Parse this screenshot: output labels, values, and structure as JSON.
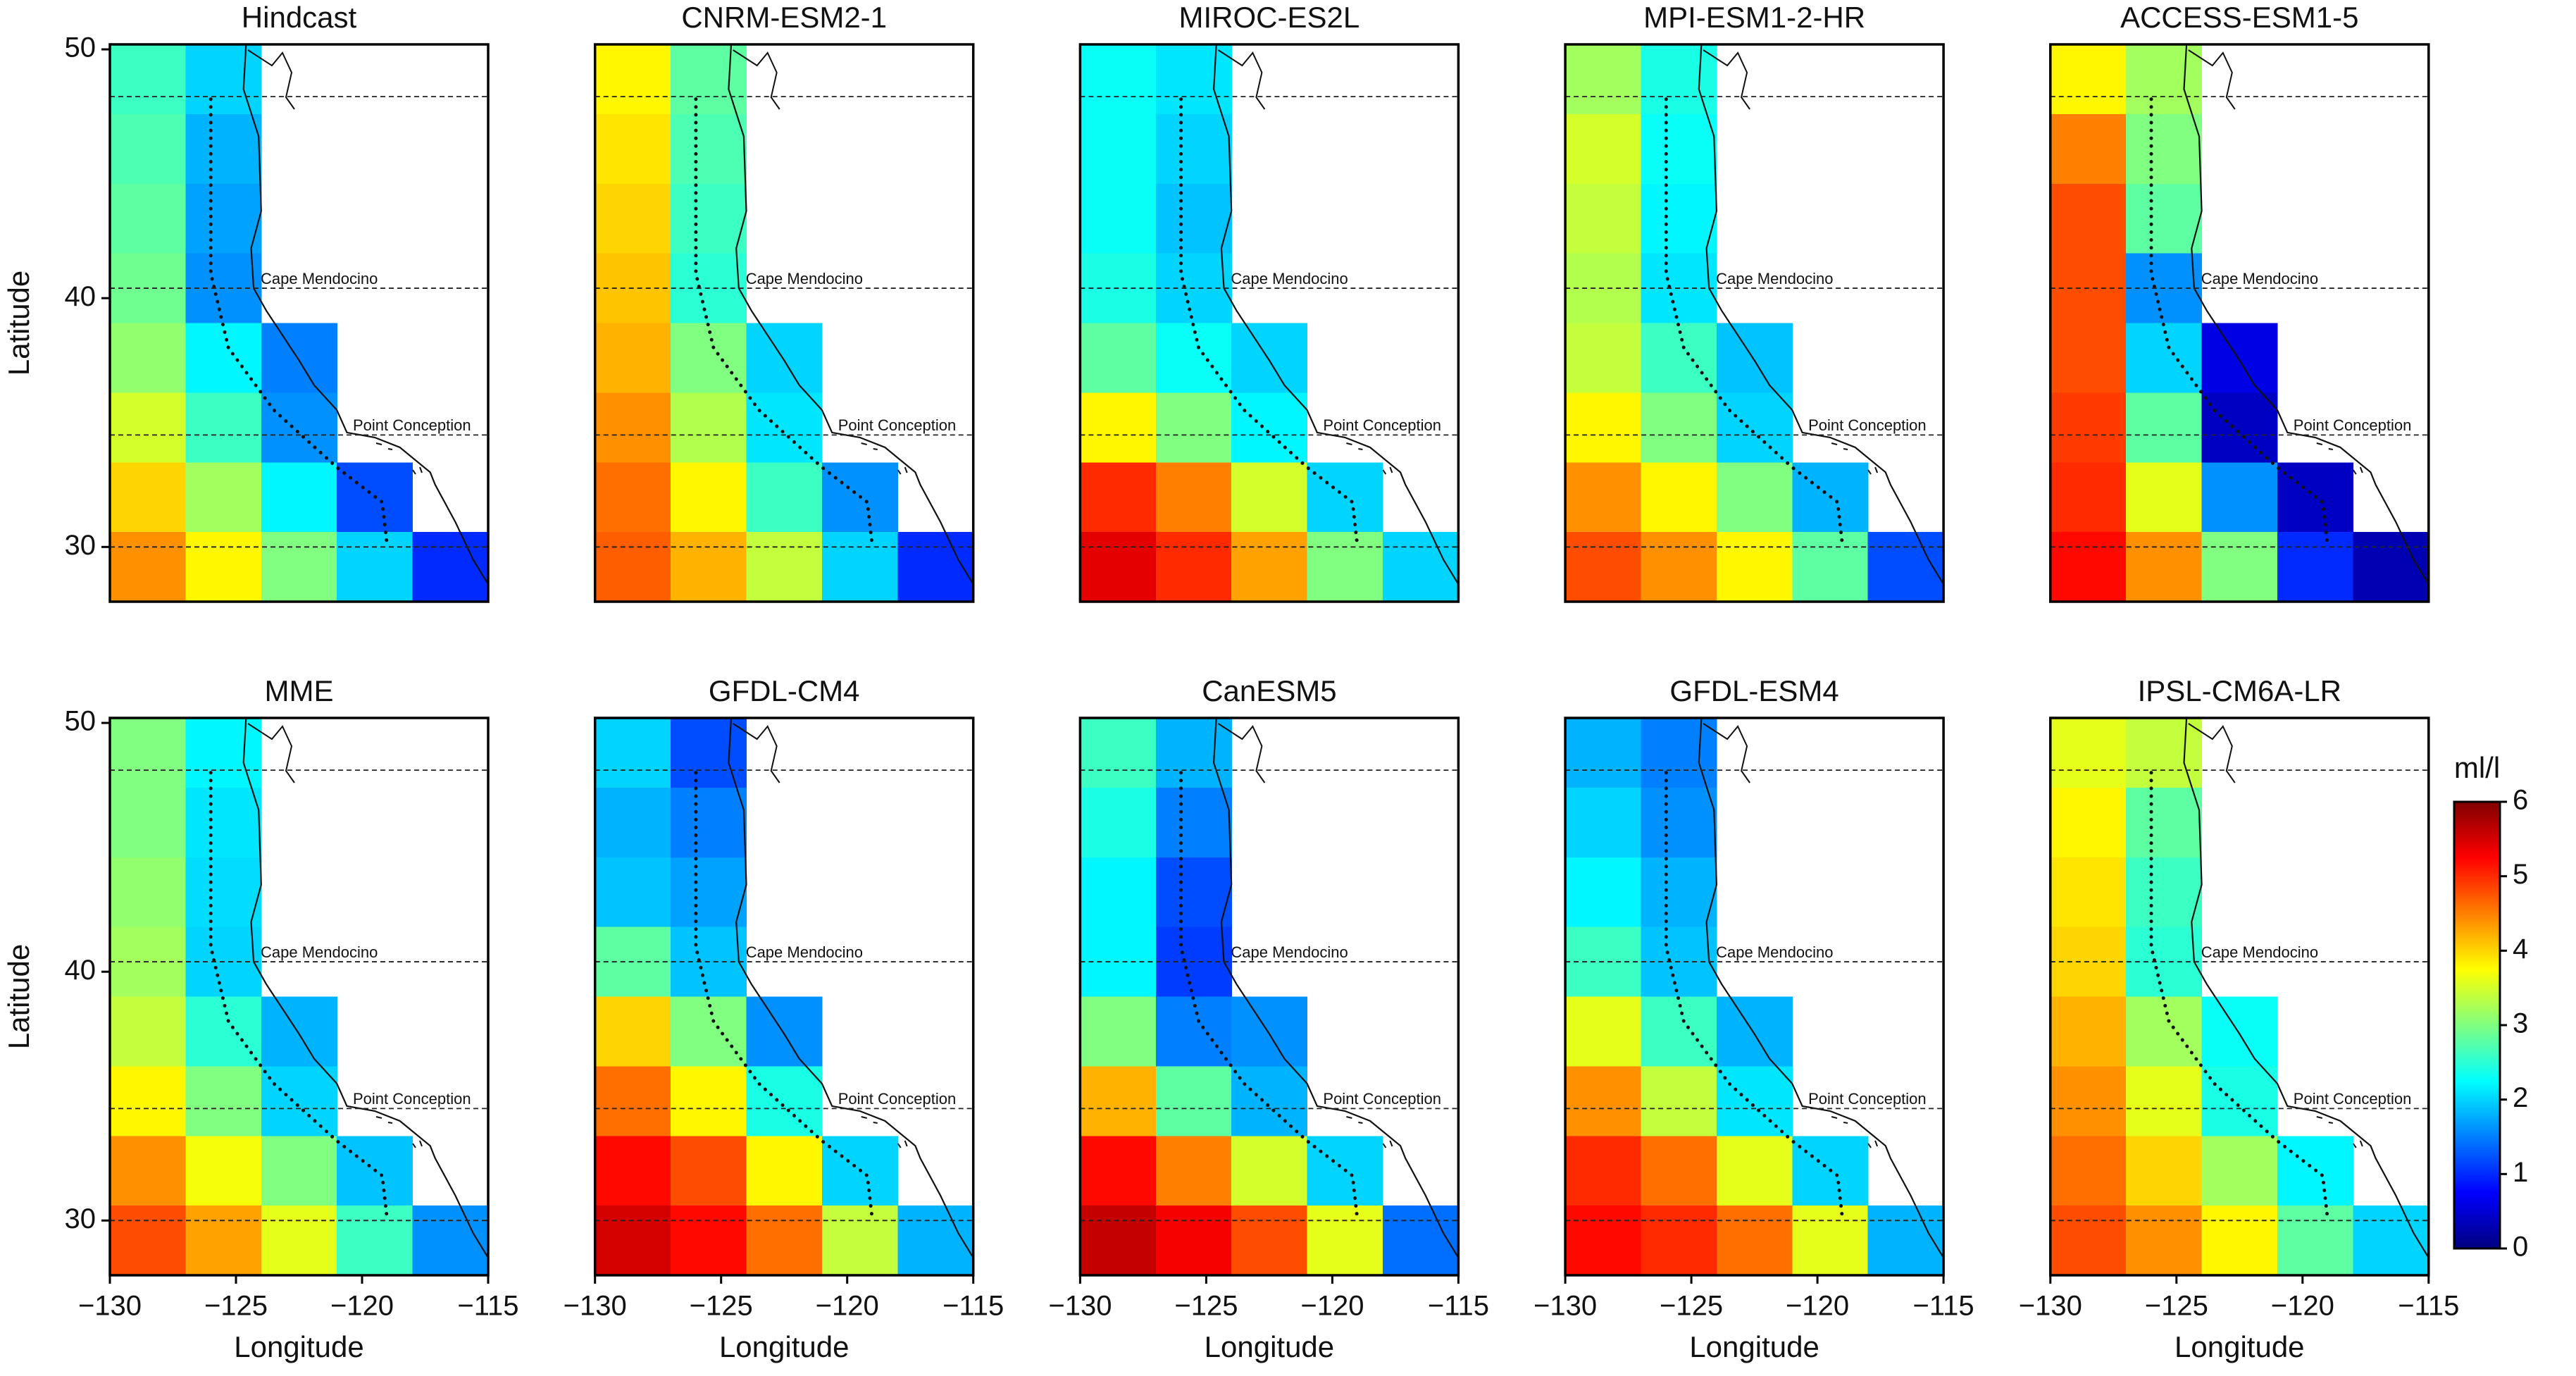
{
  "chart_data": [
    {
      "type": "heatmap",
      "title": "Hindcast",
      "colormap": "jet",
      "clim": [
        0,
        6
      ],
      "xlim": [
        -130,
        -115
      ],
      "ylim": [
        27.8,
        50.2
      ],
      "x": [
        -128.5,
        -125.5,
        -122.5,
        -119.5,
        -116.5
      ],
      "y": [
        48.8,
        46,
        43.2,
        40.4,
        37.6,
        34.8,
        32,
        29.2
      ],
      "values": [
        [
          2.6,
          2.0,
          null,
          null,
          null
        ],
        [
          2.7,
          1.8,
          null,
          null,
          null
        ],
        [
          2.8,
          1.7,
          null,
          null,
          null
        ],
        [
          2.9,
          1.6,
          null,
          null,
          null
        ],
        [
          3.1,
          2.2,
          1.5,
          null,
          null
        ],
        [
          3.5,
          2.6,
          1.6,
          null,
          null
        ],
        [
          4.0,
          3.2,
          2.2,
          1.2,
          null
        ],
        [
          4.4,
          3.8,
          3.0,
          2.0,
          1.0
        ]
      ],
      "reference_lines": [
        48.1,
        40.4,
        34.5,
        30
      ],
      "annotations": [
        {
          "text": "Cape Mendocino",
          "y": 40.4
        },
        {
          "text": "Point Conception",
          "y": 34.5
        }
      ],
      "yticks": [
        30,
        40,
        50
      ],
      "ylabel": "Latitude"
    },
    {
      "type": "heatmap",
      "title": "CNRM-ESM2-1",
      "colormap": "jet",
      "clim": [
        0,
        6
      ],
      "xlim": [
        -130,
        -115
      ],
      "ylim": [
        27.8,
        50.2
      ],
      "x": [
        -128.5,
        -125.5,
        -122.5,
        -119.5,
        -116.5
      ],
      "y": [
        48.8,
        46,
        43.2,
        40.4,
        37.6,
        34.8,
        32,
        29.2
      ],
      "values": [
        [
          3.8,
          2.8,
          null,
          null,
          null
        ],
        [
          3.9,
          2.7,
          null,
          null,
          null
        ],
        [
          4.0,
          2.6,
          null,
          null,
          null
        ],
        [
          4.1,
          2.5,
          null,
          null,
          null
        ],
        [
          4.2,
          3.0,
          2.0,
          null,
          null
        ],
        [
          4.4,
          3.3,
          2.1,
          null,
          null
        ],
        [
          4.6,
          3.8,
          2.6,
          1.6,
          null
        ],
        [
          4.7,
          4.2,
          3.4,
          2.0,
          1.0
        ]
      ],
      "reference_lines": [
        48.1,
        40.4,
        34.5,
        30
      ],
      "annotations": [
        {
          "text": "Cape Mendocino",
          "y": 40.4
        },
        {
          "text": "Point Conception",
          "y": 34.5
        }
      ]
    },
    {
      "type": "heatmap",
      "title": "MIROC-ES2L",
      "colormap": "jet",
      "clim": [
        0,
        6
      ],
      "xlim": [
        -130,
        -115
      ],
      "ylim": [
        27.8,
        50.2
      ],
      "x": [
        -128.5,
        -125.5,
        -122.5,
        -119.5,
        -116.5
      ],
      "y": [
        48.8,
        46,
        43.2,
        40.4,
        37.6,
        34.8,
        32,
        29.2
      ],
      "values": [
        [
          2.3,
          2.1,
          null,
          null,
          null
        ],
        [
          2.3,
          2.0,
          null,
          null,
          null
        ],
        [
          2.3,
          1.9,
          null,
          null,
          null
        ],
        [
          2.4,
          2.0,
          null,
          null,
          null
        ],
        [
          2.8,
          2.3,
          2.0,
          null,
          null
        ],
        [
          3.8,
          3.0,
          2.2,
          null,
          null
        ],
        [
          5.0,
          4.5,
          3.5,
          2.0,
          null
        ],
        [
          5.4,
          5.0,
          4.3,
          3.0,
          2.0
        ]
      ],
      "reference_lines": [
        48.1,
        40.4,
        34.5,
        30
      ],
      "annotations": [
        {
          "text": "Cape Mendocino",
          "y": 40.4
        },
        {
          "text": "Point Conception",
          "y": 34.5
        }
      ]
    },
    {
      "type": "heatmap",
      "title": "MPI-ESM1-2-HR",
      "colormap": "jet",
      "clim": [
        0,
        6
      ],
      "xlim": [
        -130,
        -115
      ],
      "ylim": [
        27.8,
        50.2
      ],
      "x": [
        -128.5,
        -125.5,
        -122.5,
        -119.5,
        -116.5
      ],
      "y": [
        48.8,
        46,
        43.2,
        40.4,
        37.6,
        34.8,
        32,
        29.2
      ],
      "values": [
        [
          3.2,
          2.4,
          null,
          null,
          null
        ],
        [
          3.5,
          2.3,
          null,
          null,
          null
        ],
        [
          3.4,
          2.2,
          null,
          null,
          null
        ],
        [
          3.3,
          2.1,
          null,
          null,
          null
        ],
        [
          3.4,
          2.6,
          1.9,
          null,
          null
        ],
        [
          3.8,
          3.0,
          2.0,
          null,
          null
        ],
        [
          4.4,
          3.8,
          3.0,
          1.8,
          null
        ],
        [
          4.8,
          4.4,
          3.8,
          2.8,
          1.2
        ]
      ],
      "reference_lines": [
        48.1,
        40.4,
        34.5,
        30
      ],
      "annotations": [
        {
          "text": "Cape Mendocino",
          "y": 40.4
        },
        {
          "text": "Point Conception",
          "y": 34.5
        }
      ]
    },
    {
      "type": "heatmap",
      "title": "ACCESS-ESM1-5",
      "colormap": "jet",
      "clim": [
        0,
        6
      ],
      "xlim": [
        -130,
        -115
      ],
      "ylim": [
        27.8,
        50.2
      ],
      "x": [
        -128.5,
        -125.5,
        -122.5,
        -119.5,
        -116.5
      ],
      "y": [
        48.8,
        46,
        43.2,
        40.4,
        37.6,
        34.8,
        32,
        29.2
      ],
      "values": [
        [
          3.8,
          3.2,
          null,
          null,
          null
        ],
        [
          4.5,
          3.0,
          null,
          null,
          null
        ],
        [
          4.8,
          2.8,
          null,
          null,
          null
        ],
        [
          4.8,
          1.6,
          null,
          null,
          null
        ],
        [
          4.8,
          2.0,
          0.6,
          null,
          null
        ],
        [
          4.9,
          2.8,
          0.4,
          null,
          null
        ],
        [
          5.0,
          3.6,
          1.6,
          0.4,
          null
        ],
        [
          5.2,
          4.4,
          3.0,
          1.0,
          0.3
        ]
      ],
      "reference_lines": [
        48.1,
        40.4,
        34.5,
        30
      ],
      "annotations": [
        {
          "text": "Cape Mendocino",
          "y": 40.4
        },
        {
          "text": "Point Conception",
          "y": 34.5
        }
      ]
    },
    {
      "type": "heatmap",
      "title": "MME",
      "colormap": "jet",
      "clim": [
        0,
        6
      ],
      "xlim": [
        -130,
        -115
      ],
      "ylim": [
        27.8,
        50.2
      ],
      "x": [
        -128.5,
        -125.5,
        -122.5,
        -119.5,
        -116.5
      ],
      "y": [
        48.8,
        46,
        43.2,
        40.4,
        37.6,
        34.8,
        32,
        29.2
      ],
      "values": [
        [
          3.0,
          2.2,
          null,
          null,
          null
        ],
        [
          3.0,
          2.1,
          null,
          null,
          null
        ],
        [
          3.1,
          2.05,
          null,
          null,
          null
        ],
        [
          3.2,
          2.0,
          null,
          null,
          null
        ],
        [
          3.4,
          2.5,
          1.8,
          null,
          null
        ],
        [
          3.8,
          3.0,
          2.0,
          null,
          null
        ],
        [
          4.4,
          3.7,
          3.0,
          1.9,
          null
        ],
        [
          4.8,
          4.3,
          3.6,
          2.6,
          1.6
        ]
      ],
      "reference_lines": [
        48.1,
        40.4,
        34.5,
        30
      ],
      "annotations": [
        {
          "text": "Cape Mendocino",
          "y": 40.4
        },
        {
          "text": "Point Conception",
          "y": 34.5
        }
      ],
      "yticks": [
        30,
        40,
        50
      ],
      "ylabel": "Latitude",
      "xticks": [
        {
          "value": -130,
          "label": "−130"
        },
        {
          "value": -125,
          "label": "−125"
        },
        {
          "value": -120,
          "label": "−120"
        },
        {
          "value": -115,
          "label": "−115"
        }
      ],
      "xlabel": "Longitude"
    },
    {
      "type": "heatmap",
      "title": "GFDL-CM4",
      "colormap": "jet",
      "clim": [
        0,
        6
      ],
      "xlim": [
        -130,
        -115
      ],
      "ylim": [
        27.8,
        50.2
      ],
      "x": [
        -128.5,
        -125.5,
        -122.5,
        -119.5,
        -116.5
      ],
      "y": [
        48.8,
        46,
        43.2,
        40.4,
        37.6,
        34.8,
        32,
        29.2
      ],
      "values": [
        [
          2.0,
          1.2,
          null,
          null,
          null
        ],
        [
          1.8,
          1.5,
          null,
          null,
          null
        ],
        [
          1.9,
          1.7,
          null,
          null,
          null
        ],
        [
          2.8,
          1.9,
          null,
          null,
          null
        ],
        [
          4.0,
          3.0,
          1.6,
          null,
          null
        ],
        [
          4.6,
          3.8,
          2.4,
          null,
          null
        ],
        [
          5.2,
          4.8,
          3.8,
          2.0,
          null
        ],
        [
          5.5,
          5.2,
          4.6,
          3.4,
          1.8
        ]
      ],
      "reference_lines": [
        48.1,
        40.4,
        34.5,
        30
      ],
      "annotations": [
        {
          "text": "Cape Mendocino",
          "y": 40.4
        },
        {
          "text": "Point Conception",
          "y": 34.5
        }
      ],
      "xticks": [
        {
          "value": -130,
          "label": "−130"
        },
        {
          "value": -125,
          "label": "−125"
        },
        {
          "value": -120,
          "label": "−120"
        },
        {
          "value": -115,
          "label": "−115"
        }
      ],
      "xlabel": "Longitude"
    },
    {
      "type": "heatmap",
      "title": "CanESM5",
      "colormap": "jet",
      "clim": [
        0,
        6
      ],
      "xlim": [
        -130,
        -115
      ],
      "ylim": [
        27.8,
        50.2
      ],
      "x": [
        -128.5,
        -125.5,
        -122.5,
        -119.5,
        -116.5
      ],
      "y": [
        48.8,
        46,
        43.2,
        40.4,
        37.6,
        34.8,
        32,
        29.2
      ],
      "values": [
        [
          2.6,
          1.8,
          null,
          null,
          null
        ],
        [
          2.4,
          1.5,
          null,
          null,
          null
        ],
        [
          2.2,
          1.2,
          null,
          null,
          null
        ],
        [
          2.2,
          1.1,
          null,
          null,
          null
        ],
        [
          3.0,
          1.5,
          1.6,
          null,
          null
        ],
        [
          4.2,
          2.8,
          1.8,
          null,
          null
        ],
        [
          5.2,
          4.5,
          3.5,
          2.0,
          null
        ],
        [
          5.6,
          5.3,
          4.8,
          3.6,
          1.4
        ]
      ],
      "reference_lines": [
        48.1,
        40.4,
        34.5,
        30
      ],
      "annotations": [
        {
          "text": "Cape Mendocino",
          "y": 40.4
        },
        {
          "text": "Point Conception",
          "y": 34.5
        }
      ],
      "xticks": [
        {
          "value": -130,
          "label": "−130"
        },
        {
          "value": -125,
          "label": "−125"
        },
        {
          "value": -120,
          "label": "−120"
        },
        {
          "value": -115,
          "label": "−115"
        }
      ],
      "xlabel": "Longitude"
    },
    {
      "type": "heatmap",
      "title": "GFDL-ESM4",
      "colormap": "jet",
      "clim": [
        0,
        6
      ],
      "xlim": [
        -130,
        -115
      ],
      "ylim": [
        27.8,
        50.2
      ],
      "x": [
        -128.5,
        -125.5,
        -122.5,
        -119.5,
        -116.5
      ],
      "y": [
        48.8,
        46,
        43.2,
        40.4,
        37.6,
        34.8,
        32,
        29.2
      ],
      "values": [
        [
          1.8,
          1.5,
          null,
          null,
          null
        ],
        [
          2.0,
          1.6,
          null,
          null,
          null
        ],
        [
          2.2,
          1.8,
          null,
          null,
          null
        ],
        [
          2.6,
          1.9,
          null,
          null,
          null
        ],
        [
          3.6,
          2.6,
          1.8,
          null,
          null
        ],
        [
          4.4,
          3.4,
          2.1,
          null,
          null
        ],
        [
          5.0,
          4.6,
          3.6,
          2.0,
          null
        ],
        [
          5.2,
          5.0,
          4.6,
          3.6,
          1.8
        ]
      ],
      "reference_lines": [
        48.1,
        40.4,
        34.5,
        30
      ],
      "annotations": [
        {
          "text": "Cape Mendocino",
          "y": 40.4
        },
        {
          "text": "Point Conception",
          "y": 34.5
        }
      ],
      "xticks": [
        {
          "value": -130,
          "label": "−130"
        },
        {
          "value": -125,
          "label": "−125"
        },
        {
          "value": -120,
          "label": "−120"
        },
        {
          "value": -115,
          "label": "−115"
        }
      ],
      "xlabel": "Longitude"
    },
    {
      "type": "heatmap",
      "title": "IPSL-CM6A-LR",
      "colormap": "jet",
      "clim": [
        0,
        6
      ],
      "xlim": [
        -130,
        -115
      ],
      "ylim": [
        27.8,
        50.2
      ],
      "x": [
        -128.5,
        -125.5,
        -122.5,
        -119.5,
        -116.5
      ],
      "y": [
        48.8,
        46,
        43.2,
        40.4,
        37.6,
        34.8,
        32,
        29.2
      ],
      "values": [
        [
          3.6,
          3.4,
          null,
          null,
          null
        ],
        [
          3.8,
          2.8,
          null,
          null,
          null
        ],
        [
          3.9,
          2.6,
          null,
          null,
          null
        ],
        [
          4.0,
          2.5,
          null,
          null,
          null
        ],
        [
          4.2,
          3.2,
          2.3,
          null,
          null
        ],
        [
          4.4,
          3.6,
          2.4,
          null,
          null
        ],
        [
          4.6,
          4.0,
          3.2,
          2.2,
          null
        ],
        [
          4.8,
          4.4,
          3.8,
          2.8,
          2.0
        ]
      ],
      "reference_lines": [
        48.1,
        40.4,
        34.5,
        30
      ],
      "annotations": [
        {
          "text": "Cape Mendocino",
          "y": 40.4
        },
        {
          "text": "Point Conception",
          "y": 34.5
        }
      ],
      "xticks": [
        {
          "value": -130,
          "label": "−130"
        },
        {
          "value": -125,
          "label": "−125"
        },
        {
          "value": -120,
          "label": "−120"
        },
        {
          "value": -115,
          "label": "−115"
        }
      ],
      "xlabel": "Longitude",
      "colorbar": {
        "label": "ml/l",
        "ticks": [
          0,
          1,
          2,
          3,
          4,
          5,
          6
        ]
      }
    }
  ]
}
